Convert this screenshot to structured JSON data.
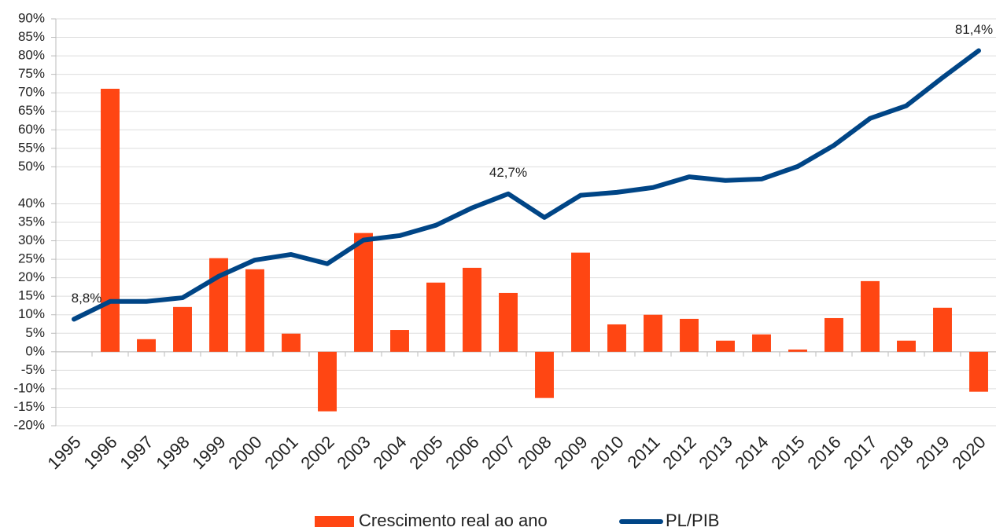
{
  "chart_data": {
    "type": "bar_line",
    "categories": [
      "1995",
      "1996",
      "1997",
      "1998",
      "1999",
      "2000",
      "2001",
      "2002",
      "2003",
      "2004",
      "2005",
      "2006",
      "2007",
      "2008",
      "2009",
      "2010",
      "2011",
      "2012",
      "2013",
      "2014",
      "2015",
      "2016",
      "2017",
      "2018",
      "2019",
      "2020"
    ],
    "series": [
      {
        "name": "Crescimento real ao ano",
        "type": "bar",
        "color": "#ff4613",
        "values": [
          null,
          71.1,
          3.4,
          12.1,
          25.3,
          22.3,
          4.9,
          -16.1,
          32.1,
          5.9,
          18.7,
          22.7,
          15.9,
          -12.5,
          26.8,
          7.4,
          10.0,
          8.9,
          3.0,
          4.7,
          0.6,
          9.1,
          19.1,
          3.0,
          11.9,
          -10.8
        ]
      },
      {
        "name": "PL/PIB",
        "type": "line",
        "color": "#004586",
        "values": [
          8.8,
          13.6,
          13.6,
          14.6,
          20.4,
          24.8,
          26.3,
          23.8,
          30.2,
          31.4,
          34.2,
          38.9,
          42.7,
          36.3,
          42.3,
          43.1,
          44.4,
          47.3,
          46.3,
          46.7,
          50.1,
          55.8,
          63.1,
          66.5,
          74.1,
          81.4
        ],
        "value_labels": [
          "8,8%",
          null,
          null,
          null,
          null,
          null,
          null,
          null,
          null,
          null,
          null,
          null,
          "42,7%",
          null,
          null,
          null,
          null,
          null,
          null,
          null,
          null,
          null,
          null,
          null,
          null,
          "81,4%"
        ]
      }
    ],
    "ylim": [
      -20,
      90
    ],
    "yticks": [
      {
        "value": 90,
        "label": "90%"
      },
      {
        "value": 85,
        "label": "85%"
      },
      {
        "value": 80,
        "label": "80%"
      },
      {
        "value": 75,
        "label": "75%"
      },
      {
        "value": 70,
        "label": "70%"
      },
      {
        "value": 65,
        "label": "65%"
      },
      {
        "value": 60,
        "label": "60%"
      },
      {
        "value": 55,
        "label": "55%"
      },
      {
        "value": 50,
        "label": "50%"
      },
      {
        "value": 40,
        "label": "40%"
      },
      {
        "value": 35,
        "label": "35%"
      },
      {
        "value": 30,
        "label": "30%"
      },
      {
        "value": 25,
        "label": "25%"
      },
      {
        "value": 20,
        "label": "20%"
      },
      {
        "value": 15,
        "label": "15%"
      },
      {
        "value": 10,
        "label": "10%"
      },
      {
        "value": 5,
        "label": "5%"
      },
      {
        "value": 0,
        "label": "0%"
      },
      {
        "value": -5,
        "label": "-5%"
      },
      {
        "value": -10,
        "label": "-10%"
      },
      {
        "value": -15,
        "label": "-15%"
      },
      {
        "value": -20,
        "label": "-20%"
      }
    ],
    "grid": true,
    "legend": "bottom"
  }
}
